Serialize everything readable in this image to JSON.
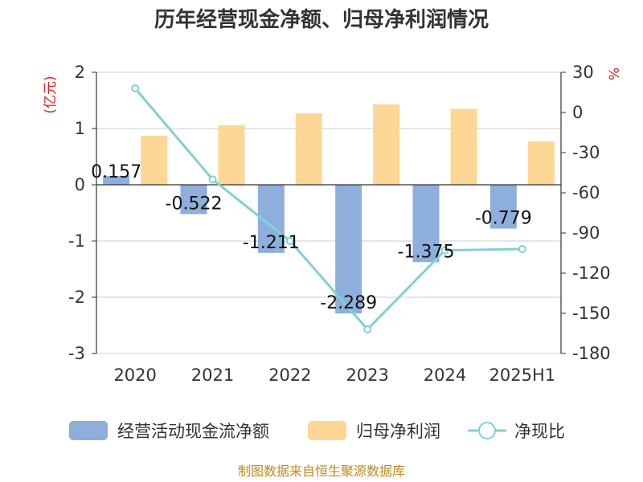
{
  "chart_data": {
    "type": "bar+line",
    "title": "历年经营现金净额、归母净利润情况",
    "categories": [
      "2020",
      "2021",
      "2022",
      "2023",
      "2024",
      "2025H1"
    ],
    "y_left": {
      "label": "(亿元)",
      "range": [
        -3,
        2
      ],
      "ticks": [
        "2",
        "1",
        "0",
        "-1",
        "-2",
        "-3"
      ]
    },
    "y_right": {
      "label": "%",
      "range": [
        -180,
        30
      ],
      "ticks": [
        "30",
        "0",
        "-30",
        "-60",
        "-90",
        "-120",
        "-150",
        "-180"
      ]
    },
    "series": [
      {
        "name": "经营活动现金流净额",
        "type": "bar",
        "axis": "left",
        "color": "#8eaedc",
        "values": [
          0.157,
          -0.522,
          -1.211,
          -2.289,
          -1.375,
          -0.779
        ],
        "labels": [
          "0.157",
          "-0.522",
          "-1.211",
          "-2.289",
          "-1.375",
          "-0.779"
        ]
      },
      {
        "name": "归母净利润",
        "type": "bar",
        "axis": "left",
        "color": "#fdd796",
        "values": [
          0.87,
          1.06,
          1.27,
          1.43,
          1.35,
          0.77
        ]
      },
      {
        "name": "净现比",
        "type": "line",
        "axis": "right",
        "color": "#82d0d4",
        "values": [
          18,
          -50,
          -96,
          -162,
          -103,
          -102
        ]
      }
    ],
    "grid": true,
    "legend_position": "bottom"
  },
  "source": "制图数据来自恒生聚源数据库"
}
